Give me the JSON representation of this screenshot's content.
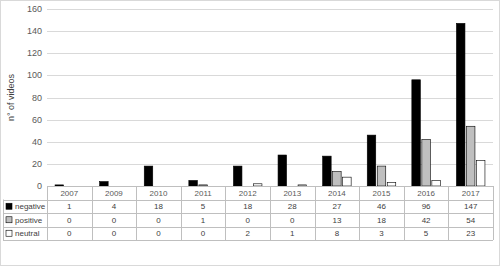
{
  "chart_data": {
    "type": "bar",
    "y_label": "n° of videos",
    "categories": [
      "2007",
      "2009",
      "2010",
      "2011",
      "2012",
      "2013",
      "2014",
      "2015",
      "2016",
      "2017"
    ],
    "series": [
      {
        "name": "negative",
        "color": "#000000",
        "values": [
          1,
          4,
          18,
          5,
          18,
          28,
          27,
          46,
          96,
          147
        ]
      },
      {
        "name": "positive",
        "color": "#bfbfbf",
        "values": [
          0,
          0,
          0,
          1,
          0,
          0,
          13,
          18,
          42,
          54
        ]
      },
      {
        "name": "neutral",
        "color": "#ffffff",
        "values": [
          0,
          0,
          0,
          0,
          2,
          1,
          8,
          3,
          5,
          23
        ]
      }
    ],
    "ylim": [
      0,
      160
    ],
    "yticks": [
      0,
      20,
      40,
      60,
      80,
      100,
      120,
      140,
      160
    ],
    "grid": true
  }
}
